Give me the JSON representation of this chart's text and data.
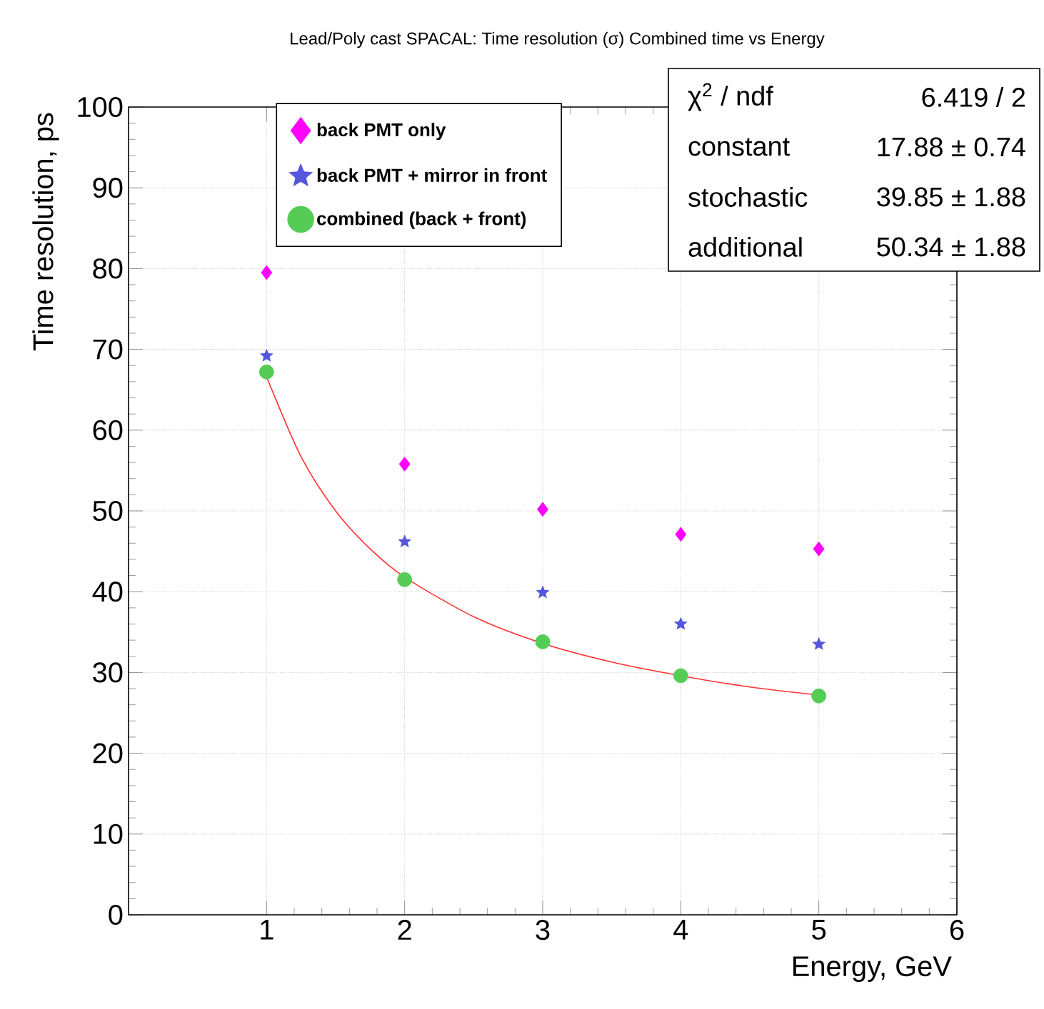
{
  "chart_data": {
    "type": "scatter",
    "title": "Lead/Poly cast SPACAL: Time resolution (σ) Combined time vs Energy",
    "xlabel": "Energy, GeV",
    "ylabel": "Time resolution, ps",
    "x": [
      1,
      2,
      3,
      4,
      5
    ],
    "xlim": [
      0,
      6
    ],
    "xticks": [
      1,
      2,
      3,
      4,
      5,
      6
    ],
    "ylim": [
      0,
      100
    ],
    "yticks": [
      0,
      10,
      20,
      30,
      40,
      50,
      60,
      70,
      80,
      90,
      100
    ],
    "grid": true,
    "legend": "top",
    "series": [
      {
        "name": "back PMT only",
        "color": "#ff00ff",
        "marker": "diamond",
        "values": [
          79.5,
          55.8,
          50.2,
          47.1,
          45.3
        ]
      },
      {
        "name": "back PMT + mirror in front",
        "color": "#5555dd",
        "marker": "star",
        "values": [
          69.2,
          46.2,
          39.9,
          36.0,
          33.5
        ]
      },
      {
        "name": "combined (back + front)",
        "color": "#55cc55",
        "marker": "circle",
        "values": [
          67.2,
          41.5,
          33.8,
          29.6,
          27.1
        ]
      },
      {
        "type": "line",
        "color": "#ff3333",
        "marker": "none",
        "x": [
          1,
          1.25,
          1.5,
          1.75,
          2,
          2.5,
          3,
          3.5,
          4,
          4.5,
          5
        ],
        "values": [
          66.6,
          56.7,
          50.0,
          45.3,
          41.8,
          36.9,
          33.6,
          31.3,
          29.6,
          28.2,
          27.2
        ]
      }
    ],
    "annotations": [
      "χ$^{2}$ / ndf",
      "6.419 / 2",
      "constant",
      "17.88 ± 0.74",
      "stochastic",
      "39.85 ± 1.88",
      "additional",
      "50.34 ± 1.88"
    ]
  }
}
